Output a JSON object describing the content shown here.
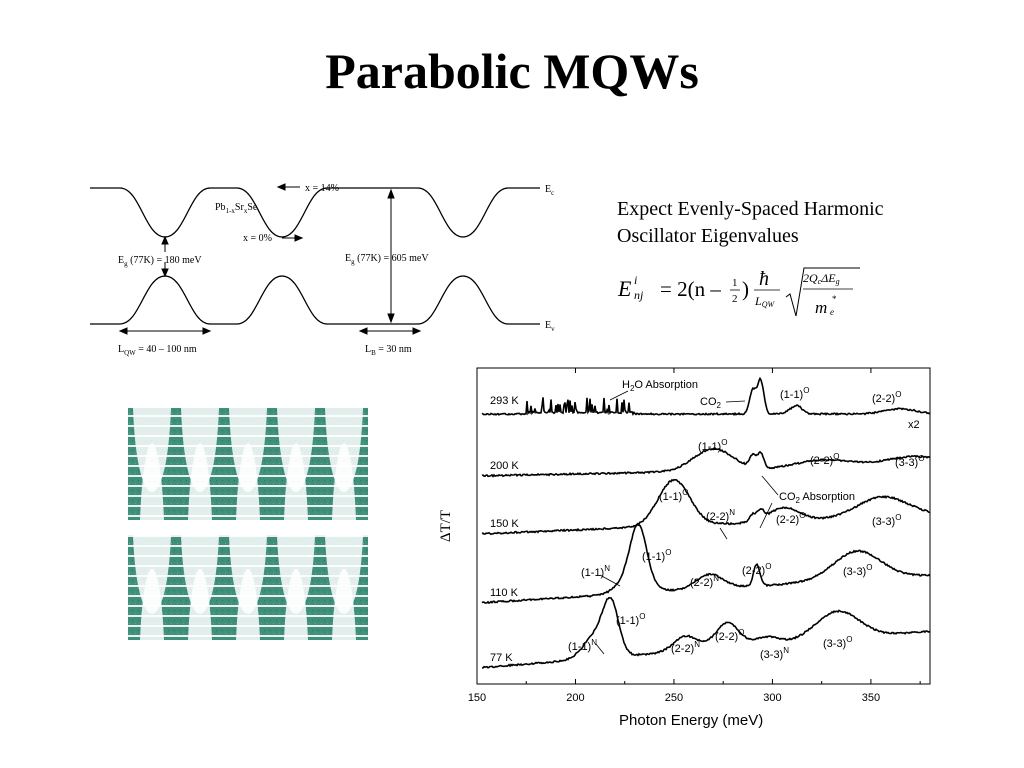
{
  "slide": {
    "title": "Parabolic MQWs",
    "description_line1": "Expect Evenly-Spaced Harmonic",
    "description_line2": "Oscillator Eigenvalues"
  },
  "band_diagram": {
    "ec": "E",
    "ec_sub": "c",
    "ev": "E",
    "ev_sub": "v",
    "x14": "x = 14%",
    "x0": "x = 0%",
    "material": {
      "a": "Pb",
      "b": "1-x",
      "c": "Sr",
      "d": "x",
      "e": "Se"
    },
    "eg_well": {
      "e": "E",
      "sub": "g",
      "rest": " (77K) = 180 meV"
    },
    "eg_barrier": {
      "e": "E",
      "sub": "g",
      "rest": " (77K) = 605 meV"
    },
    "lqw": {
      "l": "L",
      "sub": "QW",
      "rest": " = 40 – 100 nm"
    },
    "lb": {
      "l": "L",
      "sub": "B",
      "rest": " = 30 nm"
    }
  },
  "equation": {
    "E": "E",
    "sup_i": "i",
    "sub_nj": "nj",
    "eq": "= 2(n –",
    "half_num": "1",
    "half_den": "2",
    "close": ")",
    "hbar": "ħ",
    "lqw": "L",
    "lqw_sub": "QW",
    "num": "2Q",
    "num_sub_c": "c",
    "num_delta": "ΔE",
    "num_sub_g": "g",
    "den": "m",
    "den_sup": "*",
    "den_sub": "e"
  },
  "chart_data": {
    "type": "line",
    "xlabel": "Photon Energy (meV)",
    "ylabel": "ΔT/T",
    "xlim": [
      150,
      380
    ],
    "xticks": [
      150,
      200,
      250,
      300,
      350
    ],
    "series": [
      {
        "name": "293 K",
        "scale_label": "x2",
        "peaks": [
          {
            "x": 290,
            "h": 0.7
          },
          {
            "x": 294,
            "h": 1.0
          },
          {
            "x": 312,
            "h": 0.25
          },
          {
            "x": 365,
            "h": 0.15
          }
        ],
        "noise_range": [
          175,
          230
        ]
      },
      {
        "name": "200 K",
        "peaks": [
          {
            "x": 270,
            "h": 0.75
          },
          {
            "x": 290,
            "h": 0.4
          },
          {
            "x": 294,
            "h": 0.5
          },
          {
            "x": 326,
            "h": 0.3
          },
          {
            "x": 372,
            "h": 0.35
          }
        ]
      },
      {
        "name": "150 K",
        "peaks": [
          {
            "x": 250,
            "h": 1.0
          },
          {
            "x": 290,
            "h": 0.15
          },
          {
            "x": 294,
            "h": 0.2
          },
          {
            "x": 306,
            "h": 0.3
          },
          {
            "x": 356,
            "h": 0.45
          }
        ]
      },
      {
        "name": "110 K",
        "peaks": [
          {
            "x": 230,
            "h": 0.45
          },
          {
            "x": 232,
            "h": 1.0
          },
          {
            "x": 268,
            "h": 0.3
          },
          {
            "x": 292,
            "h": 0.45
          },
          {
            "x": 343,
            "h": 0.6
          }
        ]
      },
      {
        "name": "77 K",
        "peaks": [
          {
            "x": 210,
            "h": 0.45
          },
          {
            "x": 218,
            "h": 1.0
          },
          {
            "x": 256,
            "h": 0.3
          },
          {
            "x": 277,
            "h": 0.5
          },
          {
            "x": 297,
            "h": 0.15
          },
          {
            "x": 333,
            "h": 0.55
          }
        ]
      }
    ],
    "annotations": {
      "h2o": {
        "a": "H",
        "b": "2",
        "c": "O Absorption"
      },
      "co2_top": {
        "a": "CO",
        "b": "2"
      },
      "co2_abs": {
        "a": "CO",
        "b": "2",
        "c": " Absorption"
      },
      "labels": [
        {
          "text": "(1-1)",
          "sup": "O",
          "series": 0
        },
        {
          "text": "(2-2)",
          "sup": "O",
          "series": 0
        },
        {
          "text": "(1-1)",
          "sup": "O",
          "series": 1
        },
        {
          "text": "(2-2)",
          "sup": "O",
          "series": 1
        },
        {
          "text": "(3-3)",
          "sup": "O",
          "series": 1
        },
        {
          "text": "(1-1)",
          "sup": "O",
          "series": 2
        },
        {
          "text": "(2-2)",
          "sup": "N",
          "series": 2
        },
        {
          "text": "(2-2)",
          "sup": "O",
          "series": 2
        },
        {
          "text": "(3-3)",
          "sup": "O",
          "series": 2
        },
        {
          "text": "(1-1)",
          "sup": "N",
          "series": 3
        },
        {
          "text": "(1-1)",
          "sup": "O",
          "series": 3
        },
        {
          "text": "(2-2)",
          "sup": "N",
          "series": 3
        },
        {
          "text": "(2-2)",
          "sup": "O",
          "series": 3
        },
        {
          "text": "(3-3)",
          "sup": "O",
          "series": 3
        },
        {
          "text": "(1-1)",
          "sup": "N",
          "series": 4
        },
        {
          "text": "(1-1)",
          "sup": "O",
          "series": 4
        },
        {
          "text": "(2-2)",
          "sup": "N",
          "series": 4
        },
        {
          "text": "(2-2)",
          "sup": "O",
          "series": 4
        },
        {
          "text": "(3-3)",
          "sup": "N",
          "series": 4
        },
        {
          "text": "(3-3)",
          "sup": "O",
          "series": 4
        }
      ]
    }
  },
  "colors": {
    "well_fill": "#3f8f7a",
    "well_stripe": "#e8f1ee"
  }
}
